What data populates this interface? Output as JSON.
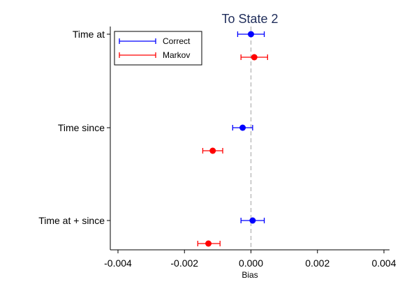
{
  "chart_data": {
    "type": "scatter",
    "subtype": "coefficient-plot",
    "title": "To State 2",
    "xlabel": "Bias",
    "ylabel": "",
    "xlim": [
      -0.0042,
      0.0041
    ],
    "xticks": [
      -0.004,
      -0.002,
      0.0,
      0.002,
      0.004
    ],
    "xtick_labels": [
      "-0.004",
      "-0.002",
      "0.000",
      "0.002",
      "0.004"
    ],
    "reference_line_x": 0,
    "grid": false,
    "legend_position": "top-left",
    "categories": [
      "Time at",
      "Time since",
      "Time at + since"
    ],
    "series": [
      {
        "name": "Correct",
        "color": "#0000ff",
        "points": [
          {
            "category": "Time at",
            "estimate": 0.0,
            "lower": -0.0004,
            "upper": 0.0004
          },
          {
            "category": "Time since",
            "estimate": -0.00025,
            "lower": -0.00055,
            "upper": 5e-05
          },
          {
            "category": "Time at + since",
            "estimate": 5e-05,
            "lower": -0.0003,
            "upper": 0.0004
          }
        ]
      },
      {
        "name": "Markov",
        "color": "#ff0000",
        "points": [
          {
            "category": "Time at",
            "estimate": 0.0001,
            "lower": -0.0003,
            "upper": 0.0005
          },
          {
            "category": "Time since",
            "estimate": -0.00115,
            "lower": -0.00145,
            "upper": -0.00085
          },
          {
            "category": "Time at + since",
            "estimate": -0.00128,
            "lower": -0.0016,
            "upper": -0.00093
          }
        ]
      }
    ]
  }
}
